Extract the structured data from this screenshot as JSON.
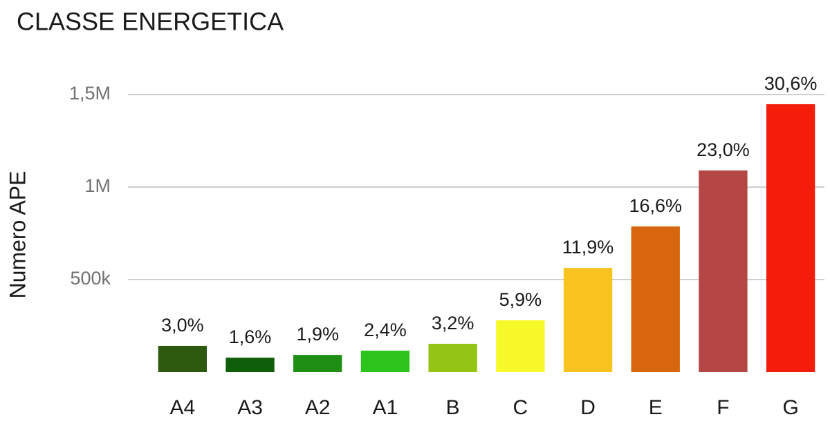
{
  "chart_data": {
    "type": "bar",
    "title": "CLASSE ENERGETICA",
    "y_label": "Numero APE",
    "categories": [
      "A4",
      "A3",
      "A2",
      "A1",
      "B",
      "C",
      "D",
      "E",
      "F",
      "G"
    ],
    "values": [
      142000,
      78000,
      93000,
      116000,
      153000,
      280000,
      563000,
      787000,
      1090000,
      1448000
    ],
    "share_labels": [
      "3,0%",
      "1,6%",
      "1,9%",
      "2,4%",
      "3,2%",
      "5,9%",
      "11,9%",
      "16,6%",
      "23,0%",
      "30,6%"
    ],
    "colors": [
      "#2d5a0e",
      "#0f5f0a",
      "#1e8f14",
      "#2ec41e",
      "#94c515",
      "#f8f92a",
      "#f8c31e",
      "#d8660f",
      "#b44646",
      "#f41d0b"
    ],
    "ylim": [
      0,
      1600000
    ],
    "yticks": [
      {
        "value": 500000,
        "label": "500k"
      },
      {
        "value": 1000000,
        "label": "1M"
      },
      {
        "value": 1500000,
        "label": "1,5M"
      }
    ],
    "grid": true
  }
}
